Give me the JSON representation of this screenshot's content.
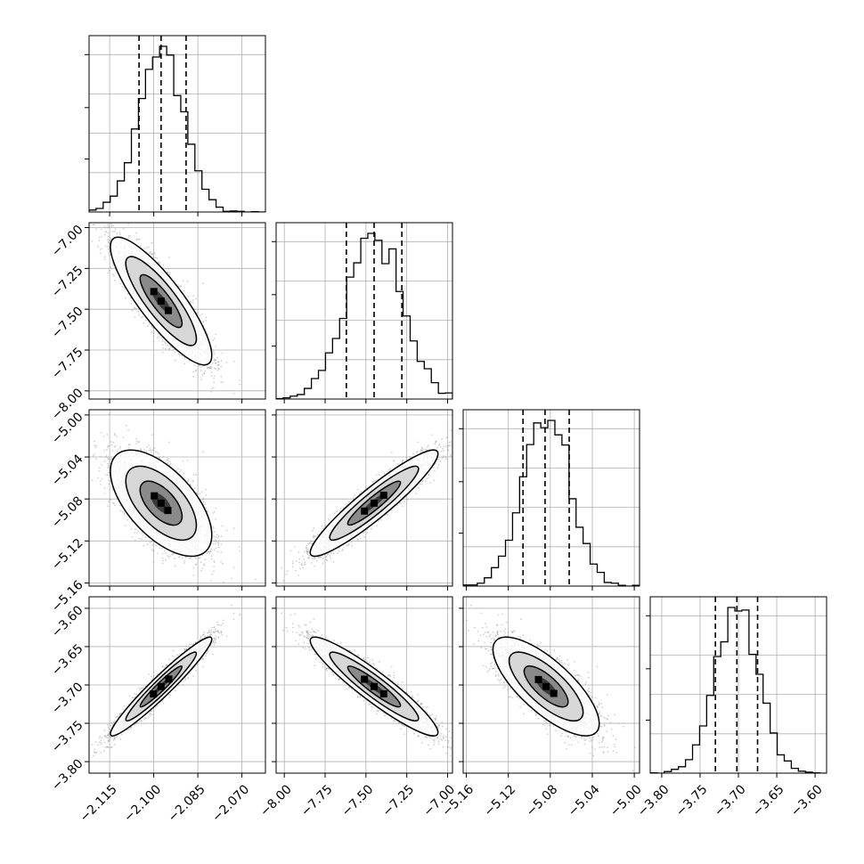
{
  "chart_data": {
    "type": "corner",
    "grid": true,
    "parameters": [
      {
        "range": [
          -2.122,
          -2.062
        ],
        "ticks": [
          -2.115,
          -2.1,
          -2.085,
          -2.07
        ],
        "tick_labels": [
          "−2.115",
          "−2.100",
          "−2.085",
          "−2.070"
        ],
        "mean": -2.0975,
        "sd": 0.0075,
        "quantiles": [
          -2.105,
          -2.0975,
          -2.089
        ]
      },
      {
        "range": [
          -8.05,
          -6.97
        ],
        "ticks": [
          -8.0,
          -7.75,
          -7.5,
          -7.25,
          -7.0
        ],
        "tick_labels": [
          "−8.00",
          "−7.75",
          "−7.50",
          "−7.25",
          "−7.00"
        ],
        "mean": -7.45,
        "sd": 0.17,
        "quantiles": [
          -7.62,
          -7.45,
          -7.28
        ]
      },
      {
        "range": [
          -5.163,
          -4.995
        ],
        "ticks": [
          -5.16,
          -5.12,
          -5.08,
          -5.04,
          -5.0
        ],
        "tick_labels": [
          "−5.16",
          "−5.12",
          "−5.08",
          "−5.04",
          "−5.00"
        ],
        "mean": -5.084,
        "sd": 0.022,
        "quantiles": [
          -5.106,
          -5.085,
          -5.062
        ]
      },
      {
        "range": [
          -3.815,
          -3.585
        ],
        "ticks": [
          -3.8,
          -3.75,
          -3.7,
          -3.65,
          -3.6
        ],
        "tick_labels": [
          "−3.80",
          "−3.75",
          "−3.70",
          "−3.65",
          "−3.60"
        ],
        "mean": -3.702,
        "sd": 0.028,
        "quantiles": [
          -3.73,
          -3.702,
          -3.675
        ]
      }
    ],
    "correlations": [
      [
        1.0,
        -0.85,
        -0.6,
        0.96
      ],
      [
        -0.85,
        1.0,
        0.93,
        -0.93
      ],
      [
        -0.6,
        0.93,
        1.0,
        -0.75
      ],
      [
        0.96,
        -0.93,
        -0.75,
        1.0
      ]
    ],
    "colors": {
      "line": "#000000",
      "grid": "#b0b0b0",
      "scatter": "#9a9a9a",
      "density_dark": "#000000"
    }
  }
}
